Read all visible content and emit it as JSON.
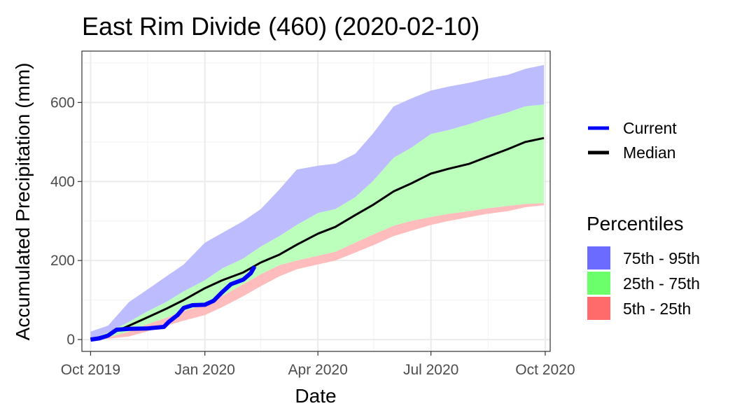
{
  "chart_data": {
    "type": "area",
    "title": "East Rim Divide (460) (2020-02-10)",
    "xlabel": "Date",
    "ylabel": "Accumulated Precipitation (mm)",
    "x_ticks": [
      "Oct 2019",
      "Jan 2020",
      "Apr 2020",
      "Jul 2020",
      "Oct 2020"
    ],
    "y_ticks": [
      0,
      200,
      400,
      600
    ],
    "xlim": [
      "2019-09-24",
      "2020-10-05"
    ],
    "ylim": [
      -30,
      730
    ],
    "grid": true,
    "legend_position": "right",
    "colors": {
      "current": "#0000ff",
      "median": "#000000",
      "band_75_95": "#bcbcff",
      "band_25_75": "#bcffbc",
      "band_5_25": "#ffbcbc"
    },
    "legend": {
      "lines": [
        {
          "label": "Current",
          "color": "#0000ff"
        },
        {
          "label": "Median",
          "color": "#000000"
        }
      ],
      "percentiles_title": "Percentiles",
      "fills": [
        {
          "label": "75th - 95th",
          "color": "#6b6bff"
        },
        {
          "label": "25th - 75th",
          "color": "#6bff6b"
        },
        {
          "label": "5th - 25th",
          "color": "#ff6b6b"
        }
      ]
    },
    "series": [
      {
        "name": "Median",
        "x": [
          "2019-10-01",
          "2019-10-15",
          "2019-11-01",
          "2019-11-15",
          "2019-12-01",
          "2019-12-15",
          "2020-01-01",
          "2020-01-15",
          "2020-02-01",
          "2020-02-15",
          "2020-03-01",
          "2020-03-15",
          "2020-04-01",
          "2020-04-15",
          "2020-05-01",
          "2020-05-15",
          "2020-06-01",
          "2020-06-15",
          "2020-07-01",
          "2020-07-15",
          "2020-08-01",
          "2020-08-15",
          "2020-09-01",
          "2020-09-15",
          "2020-09-30"
        ],
        "y": [
          0,
          12,
          35,
          55,
          78,
          100,
          130,
          150,
          170,
          195,
          215,
          240,
          268,
          285,
          315,
          340,
          375,
          395,
          420,
          432,
          445,
          462,
          482,
          500,
          510
        ]
      },
      {
        "name": "Current",
        "x": [
          "2019-10-01",
          "2019-10-08",
          "2019-10-15",
          "2019-10-22",
          "2019-11-01",
          "2019-11-15",
          "2019-11-29",
          "2019-12-03",
          "2019-12-10",
          "2019-12-15",
          "2019-12-22",
          "2020-01-01",
          "2020-01-08",
          "2020-01-15",
          "2020-01-22",
          "2020-02-01",
          "2020-02-07",
          "2020-02-10"
        ],
        "y": [
          0,
          3,
          10,
          25,
          27,
          28,
          32,
          45,
          62,
          80,
          87,
          88,
          98,
          120,
          140,
          152,
          168,
          185
        ]
      }
    ],
    "bands": [
      {
        "name": "75th - 95th",
        "x": [
          "2019-10-01",
          "2019-10-15",
          "2019-11-01",
          "2019-11-15",
          "2019-12-01",
          "2019-12-15",
          "2020-01-01",
          "2020-01-15",
          "2020-02-01",
          "2020-02-15",
          "2020-03-01",
          "2020-03-15",
          "2020-04-01",
          "2020-04-15",
          "2020-05-01",
          "2020-05-15",
          "2020-06-01",
          "2020-06-15",
          "2020-07-01",
          "2020-07-15",
          "2020-08-01",
          "2020-08-15",
          "2020-09-01",
          "2020-09-15",
          "2020-09-30"
        ],
        "lower": [
          0,
          18,
          45,
          70,
          95,
          122,
          150,
          180,
          205,
          235,
          262,
          290,
          320,
          330,
          360,
          400,
          460,
          485,
          520,
          530,
          545,
          560,
          575,
          590,
          595
        ],
        "upper": [
          20,
          35,
          95,
          125,
          160,
          190,
          245,
          270,
          300,
          330,
          380,
          430,
          440,
          445,
          470,
          520,
          590,
          610,
          630,
          640,
          650,
          660,
          670,
          685,
          695
        ]
      },
      {
        "name": "25th - 75th",
        "x": [
          "2019-10-01",
          "2019-10-15",
          "2019-11-01",
          "2019-11-15",
          "2019-12-01",
          "2019-12-15",
          "2020-01-01",
          "2020-01-15",
          "2020-02-01",
          "2020-02-15",
          "2020-03-01",
          "2020-03-15",
          "2020-04-01",
          "2020-04-15",
          "2020-05-01",
          "2020-05-15",
          "2020-06-01",
          "2020-06-15",
          "2020-07-01",
          "2020-07-15",
          "2020-08-01",
          "2020-08-15",
          "2020-09-01",
          "2020-09-15",
          "2020-09-30"
        ],
        "lower": [
          0,
          5,
          20,
          38,
          55,
          72,
          88,
          110,
          140,
          165,
          188,
          200,
          212,
          222,
          245,
          265,
          288,
          300,
          310,
          318,
          325,
          332,
          338,
          343,
          345
        ],
        "upper": [
          0,
          18,
          45,
          70,
          95,
          122,
          150,
          180,
          205,
          235,
          262,
          290,
          320,
          330,
          360,
          400,
          460,
          485,
          520,
          530,
          545,
          560,
          575,
          590,
          595
        ]
      },
      {
        "name": "5th - 25th",
        "x": [
          "2019-10-01",
          "2019-10-15",
          "2019-11-01",
          "2019-11-15",
          "2019-12-01",
          "2019-12-15",
          "2020-01-01",
          "2020-01-15",
          "2020-02-01",
          "2020-02-15",
          "2020-03-01",
          "2020-03-15",
          "2020-04-01",
          "2020-04-15",
          "2020-05-01",
          "2020-05-15",
          "2020-06-01",
          "2020-06-15",
          "2020-07-01",
          "2020-07-15",
          "2020-08-01",
          "2020-08-15",
          "2020-09-01",
          "2020-09-15",
          "2020-09-30"
        ],
        "lower": [
          0,
          2,
          8,
          20,
          35,
          48,
          62,
          82,
          110,
          135,
          160,
          178,
          190,
          200,
          220,
          238,
          262,
          275,
          290,
          300,
          310,
          318,
          325,
          335,
          340
        ],
        "upper": [
          0,
          5,
          20,
          38,
          55,
          72,
          88,
          110,
          140,
          165,
          188,
          200,
          212,
          222,
          245,
          265,
          288,
          300,
          310,
          318,
          325,
          332,
          338,
          343,
          345
        ]
      }
    ]
  }
}
